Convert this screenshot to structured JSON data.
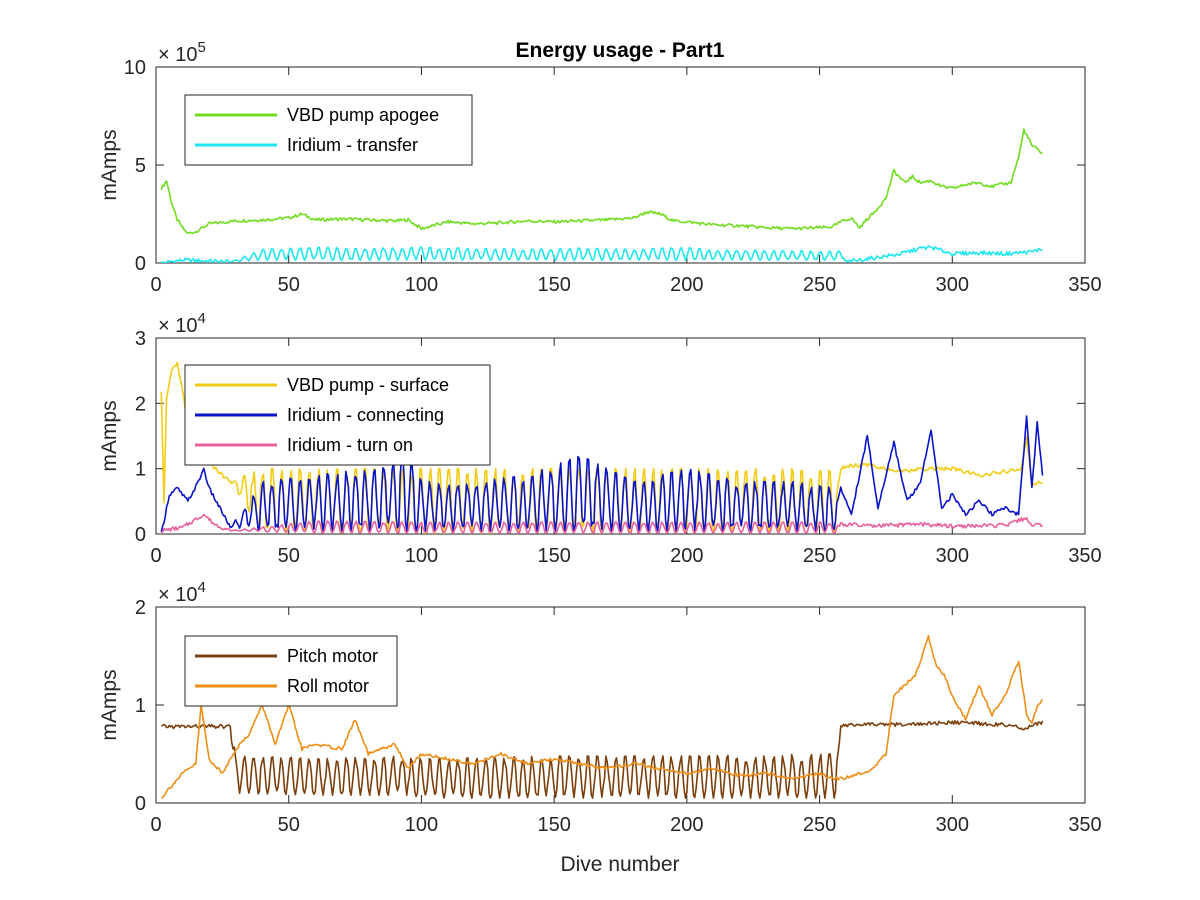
{
  "figure": {
    "title": "Energy usage - Part1",
    "xlabel": "Dive number"
  },
  "chart_data": [
    {
      "type": "line",
      "title": "Energy usage - Part1",
      "xlabel": "",
      "ylabel": "mAmps",
      "xlim": [
        0,
        350
      ],
      "ylim": [
        0,
        1000000
      ],
      "xticks": [
        "0",
        "50",
        "100",
        "150",
        "200",
        "250",
        "300",
        "350"
      ],
      "yticks": [
        "0",
        "5",
        "10"
      ],
      "ytick_values": [
        0,
        500000,
        1000000
      ],
      "exponent": "× 10",
      "exponent_power": "5",
      "grid": false,
      "legend_position": "top-left",
      "series": [
        {
          "name": "VBD pump apogee",
          "color": "#6fdc1e",
          "pattern": "smooth",
          "x": [
            2,
            4,
            6,
            8,
            10,
            12,
            15,
            20,
            30,
            40,
            50,
            55,
            60,
            70,
            80,
            90,
            95,
            100,
            110,
            120,
            130,
            140,
            150,
            160,
            170,
            180,
            185,
            190,
            195,
            200,
            210,
            220,
            230,
            240,
            250,
            255,
            258,
            262,
            265,
            268,
            270,
            275,
            278,
            282,
            285,
            288,
            292,
            296,
            300,
            305,
            310,
            315,
            318,
            322,
            325,
            327,
            330,
            332,
            334
          ],
          "y": [
            380000,
            420000,
            300000,
            220000,
            180000,
            150000,
            160000,
            200000,
            215000,
            220000,
            230000,
            250000,
            220000,
            225000,
            220000,
            215000,
            220000,
            175000,
            210000,
            200000,
            205000,
            215000,
            210000,
            215000,
            220000,
            230000,
            260000,
            250000,
            215000,
            210000,
            195000,
            190000,
            180000,
            175000,
            180000,
            185000,
            210000,
            230000,
            180000,
            225000,
            250000,
            330000,
            470000,
            410000,
            440000,
            410000,
            420000,
            390000,
            380000,
            400000,
            410000,
            390000,
            400000,
            410000,
            540000,
            680000,
            600000,
            580000,
            560000
          ]
        },
        {
          "name": "Iridium - transfer",
          "color": "#1ee6f0",
          "pattern": "oscillate",
          "x": [
            2,
            10,
            20,
            28,
            40,
            60,
            80,
            100,
            120,
            140,
            160,
            180,
            200,
            210,
            230,
            250,
            258,
            260,
            270,
            280,
            288,
            292,
            300,
            310,
            320,
            330,
            334
          ],
          "y_low": [
            0,
            15000,
            10000,
            5000,
            15000,
            15000,
            15000,
            15000,
            15000,
            15000,
            15000,
            15000,
            15000,
            15000,
            15000,
            15000,
            15000,
            5000,
            25000,
            45000,
            60000,
            65000,
            45000,
            50000,
            45000,
            55000,
            70000
          ],
          "y_high": [
            0,
            15000,
            10000,
            5000,
            70000,
            80000,
            75000,
            80000,
            75000,
            70000,
            75000,
            70000,
            80000,
            65000,
            65000,
            60000,
            60000,
            5000,
            25000,
            45000,
            90000,
            95000,
            50000,
            55000,
            50000,
            60000,
            75000
          ],
          "period": 3.5,
          "start": 28,
          "end": 258
        }
      ]
    },
    {
      "type": "line",
      "xlabel": "",
      "ylabel": "mAmps",
      "xlim": [
        0,
        350
      ],
      "ylim": [
        0,
        30000
      ],
      "xticks": [
        "0",
        "50",
        "100",
        "150",
        "200",
        "250",
        "300",
        "350"
      ],
      "yticks": [
        "0",
        "1",
        "2",
        "3"
      ],
      "ytick_values": [
        0,
        10000,
        20000,
        30000
      ],
      "exponent": "× 10",
      "exponent_power": "4",
      "grid": false,
      "legend_position": "top-left",
      "series": [
        {
          "name": "VBD pump - surface",
          "color": "#f2cc14",
          "pattern": "oscillate",
          "x": [
            2,
            3,
            4,
            6,
            8,
            10,
            12,
            15,
            18,
            20,
            25,
            28,
            40,
            60,
            80,
            100,
            120,
            140,
            160,
            180,
            200,
            220,
            240,
            256,
            258,
            262,
            270,
            280,
            290,
            300,
            310,
            320,
            326,
            328,
            330,
            332,
            334
          ],
          "y_low": [
            22000,
            5000,
            21000,
            25000,
            26000,
            22000,
            17000,
            15000,
            12000,
            11000,
            9000,
            8000,
            100,
            100,
            100,
            100,
            100,
            100,
            100,
            100,
            100,
            100,
            100,
            100,
            10000,
            10500,
            10500,
            9500,
            10000,
            10000,
            9000,
            9500,
            10000,
            15000,
            7000,
            8000,
            8000
          ],
          "y_high": [
            22000,
            5000,
            21000,
            25000,
            26000,
            22000,
            17000,
            15000,
            12000,
            11000,
            9000,
            8000,
            10000,
            10000,
            10000,
            10000,
            10000,
            10000,
            10000,
            10000,
            10000,
            10000,
            10000,
            10000,
            10000,
            10500,
            10500,
            9500,
            10000,
            10000,
            9000,
            9500,
            10000,
            15000,
            7000,
            8000,
            8000
          ],
          "period": 3.5,
          "start": 28,
          "end": 256
        },
        {
          "name": "Iridium - connecting",
          "color": "#0a14c8",
          "pattern": "oscillate",
          "x": [
            2,
            5,
            8,
            12,
            16,
            18,
            20,
            24,
            28,
            40,
            60,
            80,
            95,
            100,
            120,
            140,
            160,
            180,
            200,
            220,
            240,
            256,
            258,
            262,
            268,
            272,
            278,
            283,
            288,
            292,
            296,
            300,
            305,
            310,
            315,
            320,
            325,
            328,
            330,
            332,
            334
          ],
          "y_low": [
            0,
            6000,
            7000,
            5000,
            8000,
            10000,
            7000,
            4000,
            1000,
            500,
            500,
            500,
            500,
            500,
            500,
            500,
            500,
            500,
            500,
            500,
            500,
            500,
            7000,
            3000,
            15000,
            4000,
            14000,
            5000,
            8000,
            16000,
            4000,
            6000,
            3000,
            5000,
            3000,
            4000,
            3000,
            18000,
            7000,
            17000,
            9000
          ],
          "y_high": [
            0,
            6000,
            7000,
            5000,
            8000,
            10000,
            7000,
            4000,
            1000,
            8000,
            9000,
            10000,
            13000,
            8000,
            8000,
            9000,
            12000,
            8000,
            10000,
            8000,
            8000,
            7000,
            7000,
            3000,
            15000,
            4000,
            14000,
            5000,
            8000,
            16000,
            4000,
            6000,
            3000,
            5000,
            3000,
            4000,
            3000,
            18000,
            7000,
            17000,
            9000
          ],
          "period": 3.5,
          "start": 28,
          "end": 256
        },
        {
          "name": "Iridium - turn on",
          "color": "#e8609b",
          "pattern": "oscillate",
          "x": [
            2,
            10,
            18,
            22,
            28,
            60,
            100,
            140,
            180,
            220,
            256,
            258,
            270,
            288,
            300,
            320,
            328,
            330,
            334
          ],
          "y_low": [
            500,
            1000,
            3000,
            1500,
            500,
            100,
            100,
            100,
            100,
            100,
            100,
            1500,
            1200,
            1500,
            1200,
            1300,
            2500,
            1200,
            1500
          ],
          "y_high": [
            500,
            1000,
            3000,
            1500,
            500,
            2000,
            1800,
            1800,
            1800,
            1800,
            1800,
            1500,
            1200,
            1500,
            1200,
            1300,
            2500,
            1200,
            1500
          ],
          "period": 3.5,
          "start": 28,
          "end": 256
        }
      ]
    },
    {
      "type": "line",
      "xlabel": "Dive number",
      "ylabel": "mAmps",
      "xlim": [
        0,
        350
      ],
      "ylim": [
        0,
        20000
      ],
      "xticks": [
        "0",
        "50",
        "100",
        "150",
        "200",
        "250",
        "300",
        "350"
      ],
      "yticks": [
        "0",
        "1",
        "2"
      ],
      "ytick_values": [
        0,
        10000,
        20000
      ],
      "exponent": "× 10",
      "exponent_power": "4",
      "grid": false,
      "legend_position": "top-left",
      "series": [
        {
          "name": "Pitch motor",
          "color": "#7a3f0c",
          "pattern": "oscillate",
          "x": [
            2,
            10,
            20,
            28,
            30,
            60,
            95,
            100,
            150,
            200,
            256,
            258,
            262,
            280,
            300,
            320,
            328,
            330,
            334
          ],
          "y_low": [
            7800,
            7800,
            7800,
            7800,
            1000,
            800,
            800,
            500,
            500,
            500,
            500,
            7800,
            8000,
            8000,
            8200,
            8000,
            7500,
            8000,
            8200
          ],
          "y_high": [
            7800,
            7800,
            7800,
            7800,
            5000,
            4500,
            4800,
            4500,
            4800,
            4800,
            5000,
            7800,
            8000,
            8000,
            8200,
            8000,
            7500,
            8000,
            8200
          ],
          "period": 3.5,
          "start": 28,
          "end": 256
        },
        {
          "name": "Roll motor",
          "color": "#ee8e16",
          "pattern": "smooth",
          "x": [
            2,
            5,
            10,
            15,
            17,
            20,
            25,
            30,
            35,
            40,
            45,
            50,
            55,
            60,
            70,
            75,
            80,
            90,
            95,
            100,
            110,
            120,
            130,
            140,
            150,
            160,
            170,
            180,
            190,
            200,
            210,
            220,
            230,
            240,
            250,
            255,
            258,
            265,
            270,
            275,
            278,
            282,
            286,
            288,
            291,
            294,
            297,
            300,
            305,
            310,
            315,
            320,
            325,
            328,
            330,
            332,
            334
          ],
          "y": [
            500,
            1500,
            3000,
            4000,
            10000,
            4500,
            3000,
            5500,
            7000,
            10000,
            6000,
            10000,
            5500,
            6000,
            5500,
            8500,
            5000,
            6000,
            3500,
            5000,
            4500,
            4000,
            5000,
            4000,
            4500,
            4000,
            3500,
            4000,
            3500,
            3000,
            3500,
            2800,
            3000,
            2500,
            3000,
            2500,
            2500,
            3000,
            3500,
            5000,
            11000,
            12000,
            13000,
            14500,
            17000,
            14000,
            13000,
            11000,
            8500,
            12000,
            9000,
            11000,
            14500,
            9000,
            8000,
            10000,
            10500
          ]
        }
      ]
    }
  ]
}
